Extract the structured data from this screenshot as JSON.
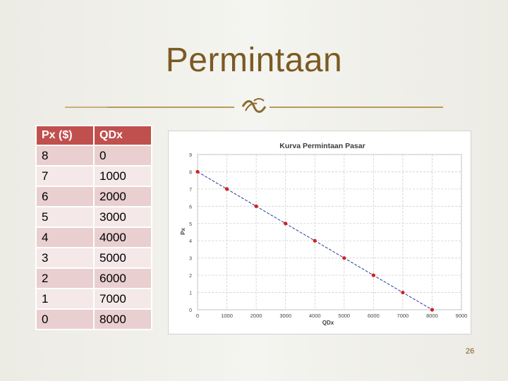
{
  "slide": {
    "title": "Permintaan",
    "page_number": "26",
    "accent_color": "#7b5a22",
    "divider_icon": "curly-divider-icon"
  },
  "table": {
    "headers": [
      "Px ($)",
      "QDx"
    ],
    "header_color": "#c0504d",
    "rows": [
      [
        "8",
        "0"
      ],
      [
        "7",
        "1000"
      ],
      [
        "6",
        "2000"
      ],
      [
        "5",
        "3000"
      ],
      [
        "4",
        "4000"
      ],
      [
        "3",
        "5000"
      ],
      [
        "2",
        "6000"
      ],
      [
        "1",
        "7000"
      ],
      [
        "0",
        "8000"
      ]
    ]
  },
  "chart_data": {
    "type": "line",
    "title": "Kurva Permintaan Pasar",
    "xlabel": "QDx",
    "ylabel": "Px",
    "x": [
      0,
      1000,
      2000,
      3000,
      4000,
      5000,
      6000,
      7000,
      8000
    ],
    "series": [
      {
        "values": [
          8,
          7,
          6,
          5,
          4,
          3,
          2,
          1,
          0
        ],
        "color": "#1f3a9e",
        "marker_color": "#d42020"
      }
    ],
    "xlim": [
      0,
      9000
    ],
    "ylim": [
      0,
      9
    ],
    "x_ticks": [
      "0",
      "1000",
      "2000",
      "3000",
      "4000",
      "5000",
      "6000",
      "7000",
      "8000",
      "9000"
    ],
    "y_ticks": [
      "0",
      "1",
      "2",
      "3",
      "4",
      "5",
      "6",
      "7",
      "8",
      "9"
    ],
    "grid": true,
    "line_style": "dashed"
  }
}
